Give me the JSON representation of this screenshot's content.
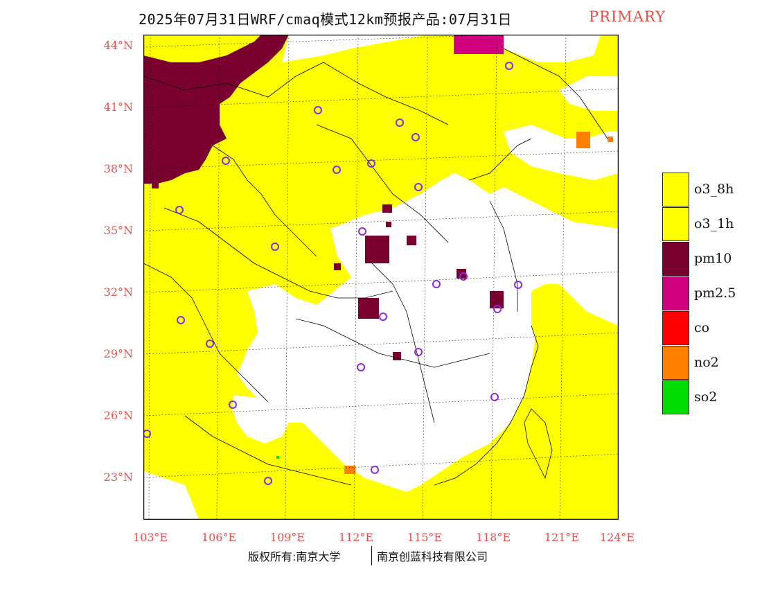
{
  "title": {
    "main": "2025年07月31日WRF/cmaq模式12km预报产品:07月31日",
    "tag": "PRIMARY"
  },
  "map": {
    "latitude_labels": [
      "44°N",
      "41°N",
      "38°N",
      "35°N",
      "32°N",
      "29°N",
      "26°N",
      "23°N"
    ],
    "longitude_labels": [
      "103°E",
      "106°E",
      "109°E",
      "112°E",
      "115°E",
      "118°E",
      "121°E",
      "124°E"
    ],
    "station_marker_color": "#8a2be2"
  },
  "legend": {
    "items": [
      {
        "label": "o3_8h",
        "color": "#ffff00"
      },
      {
        "label": "o3_1h",
        "color": "#ffff00"
      },
      {
        "label": "pm10",
        "color": "#7a0030"
      },
      {
        "label": "pm2.5",
        "color": "#d0007e"
      },
      {
        "label": "co",
        "color": "#ff0000"
      },
      {
        "label": "no2",
        "color": "#ff7f00"
      },
      {
        "label": "so2",
        "color": "#00dd00"
      }
    ]
  },
  "footer": {
    "copyright": "版权所有:南京大学",
    "company": "南京创蓝科技有限公司"
  }
}
